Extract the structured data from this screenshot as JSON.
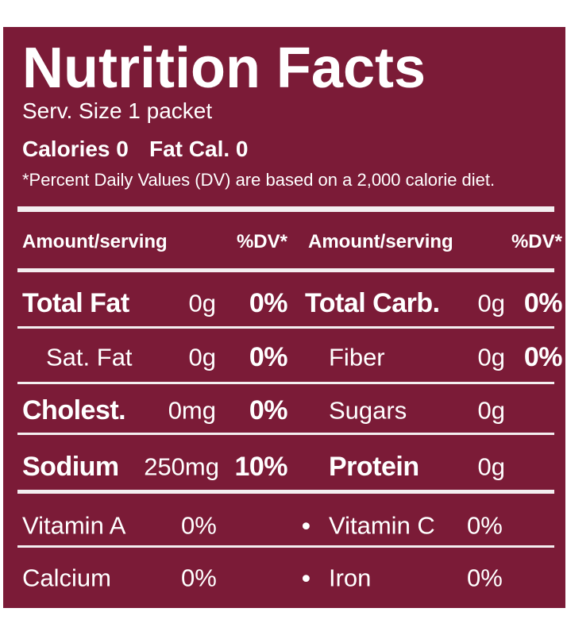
{
  "title": "Nutrition Facts",
  "serving_size": "Serv. Size 1 packet",
  "calories": "Calories 0",
  "fat_calories": "Fat Cal. 0",
  "footnote": "*Percent Daily Values (DV) are based on a 2,000 calorie diet.",
  "header": [
    "Amount/serving",
    "%DV*",
    "Amount/serving",
    "%DV*"
  ],
  "rows": [
    {
      "left": {
        "name": "Total Fat",
        "amount": "0g",
        "dv": "0%"
      },
      "right": {
        "name": "Total Carb.",
        "amount": "0g",
        "dv": "0%"
      }
    },
    {
      "left": {
        "name": "Sat. Fat",
        "amount": "0g",
        "dv": "0%"
      },
      "right": {
        "name": "Fiber",
        "amount": "0g",
        "dv": "0%"
      }
    },
    {
      "left": {
        "name": "Cholest.",
        "amount": "0mg",
        "dv": "0%"
      },
      "right": {
        "name": "Sugars",
        "amount": "0g"
      }
    },
    {
      "left": {
        "name": "Sodium",
        "amount": "250mg",
        "dv": "10%"
      },
      "right": {
        "name": "Protein",
        "amount": "0g"
      }
    }
  ],
  "vitamins": [
    {
      "left": {
        "name": "Vitamin A",
        "dv": "0%"
      },
      "right": {
        "name": "Vitamin C",
        "dv": "0%"
      }
    },
    {
      "left": {
        "name": "Calcium",
        "dv": "0%"
      },
      "right": {
        "name": "Iron",
        "dv": "0%"
      }
    }
  ]
}
